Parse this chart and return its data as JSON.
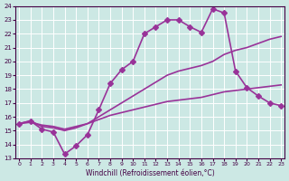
{
  "xlabel": "Windchill (Refroidissement éolien,°C)",
  "bg_color": "#cce8e4",
  "line_color": "#993399",
  "grid_color": "#ffffff",
  "xlim": [
    -0.3,
    23.3
  ],
  "ylim": [
    13,
    24
  ],
  "yticks": [
    13,
    14,
    15,
    16,
    17,
    18,
    19,
    20,
    21,
    22,
    23,
    24
  ],
  "xticks": [
    0,
    1,
    2,
    3,
    4,
    5,
    6,
    7,
    8,
    9,
    10,
    11,
    12,
    13,
    14,
    15,
    16,
    17,
    18,
    19,
    20,
    21,
    22,
    23
  ],
  "series": [
    {
      "x": [
        0,
        1,
        2,
        3,
        4,
        5,
        6,
        7,
        8,
        9,
        10,
        11,
        12,
        13,
        14,
        15,
        16,
        17,
        18,
        19,
        20,
        21,
        22,
        23
      ],
      "y": [
        15.5,
        15.7,
        15.1,
        14.9,
        13.3,
        13.9,
        14.7,
        16.5,
        18.4,
        19.4,
        20.0,
        22.0,
        22.5,
        23.0,
        23.0,
        22.5,
        22.1,
        23.8,
        23.5,
        19.3,
        18.1,
        17.5,
        17.0,
        16.8
      ],
      "marker": "D",
      "markersize": 3,
      "linewidth": 1.2
    },
    {
      "x": [
        0,
        1,
        2,
        3,
        4,
        5,
        6,
        7,
        8,
        9,
        10,
        11,
        12,
        13,
        14,
        15,
        16,
        17,
        18,
        19,
        20,
        21,
        22,
        23
      ],
      "y": [
        15.5,
        15.7,
        15.3,
        15.2,
        15.0,
        15.2,
        15.5,
        16.0,
        16.5,
        17.0,
        17.5,
        18.0,
        18.5,
        19.0,
        19.3,
        19.5,
        19.7,
        20.0,
        20.5,
        20.8,
        21.0,
        21.3,
        21.6,
        21.8
      ],
      "marker": null,
      "markersize": 0,
      "linewidth": 1.2
    },
    {
      "x": [
        0,
        1,
        2,
        3,
        4,
        5,
        6,
        7,
        8,
        9,
        10,
        11,
        12,
        13,
        14,
        15,
        16,
        17,
        18,
        19,
        20,
        21,
        22,
        23
      ],
      "y": [
        15.5,
        15.6,
        15.4,
        15.3,
        15.1,
        15.3,
        15.5,
        15.8,
        16.1,
        16.3,
        16.5,
        16.7,
        16.9,
        17.1,
        17.2,
        17.3,
        17.4,
        17.6,
        17.8,
        17.9,
        18.0,
        18.1,
        18.2,
        18.3
      ],
      "marker": null,
      "markersize": 0,
      "linewidth": 1.2
    }
  ]
}
